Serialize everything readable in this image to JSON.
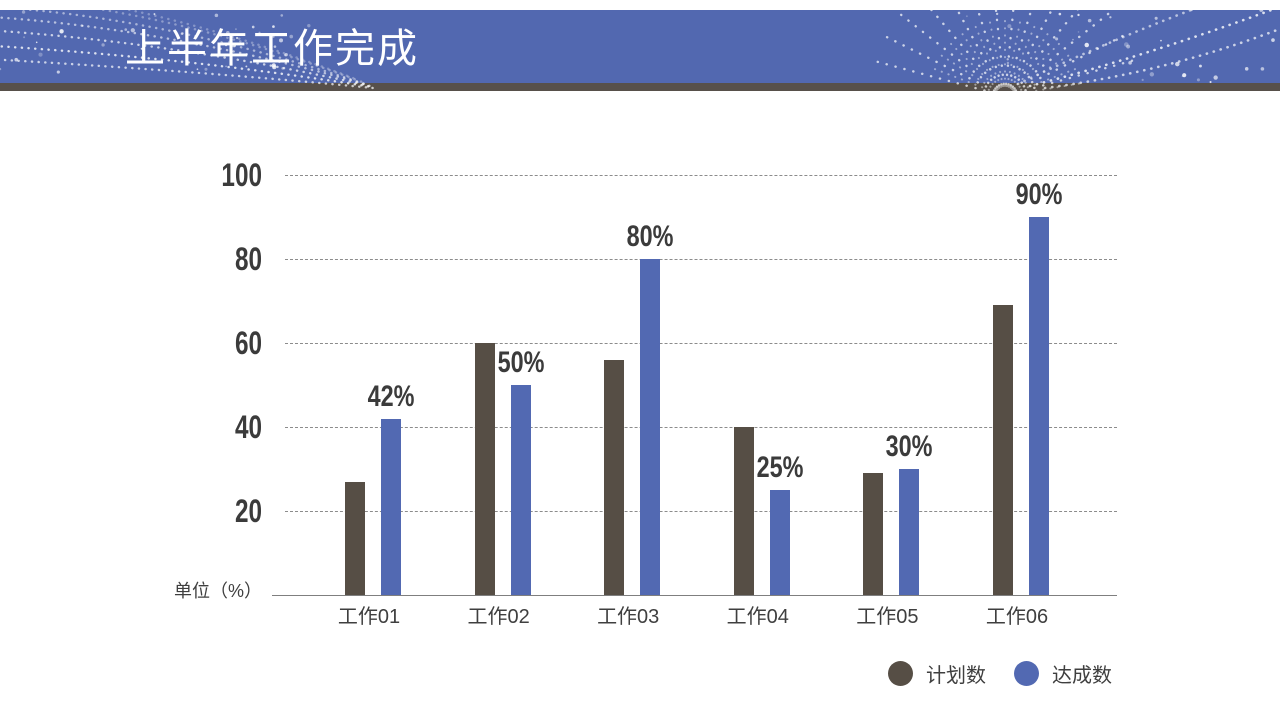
{
  "slide": {
    "title": "上半年工作完成"
  },
  "chart_data": {
    "type": "bar",
    "title": "上半年工作完成",
    "ylabel": "单位（%）",
    "ylim": [
      0,
      100
    ],
    "yticks": [
      100,
      80,
      60,
      40,
      20
    ],
    "grid": "horizontal-dashed",
    "legend_position": "bottom-right",
    "categories": [
      "工作01",
      "工作02",
      "工作03",
      "工作04",
      "工作05",
      "工作06"
    ],
    "series": [
      {
        "name": "计划数",
        "color": "#564E45",
        "values": [
          27,
          60,
          56,
          40,
          29,
          69
        ]
      },
      {
        "name": "达成数",
        "color": "#5269B2",
        "values": [
          42,
          50,
          80,
          25,
          30,
          90
        ]
      }
    ],
    "data_labels": {
      "series": "达成数",
      "values": [
        "42%",
        "50%",
        "80%",
        "25%",
        "30%",
        "90%"
      ]
    }
  },
  "colors": {
    "header": "#5268B0",
    "header_underline": "#57504A",
    "background": "#FFFFFF",
    "grid": "#8C8C8C",
    "axis": "#7F7F7F",
    "tick_text": "#3B3B3B",
    "category_text": "#3F3F3F",
    "title_text": "#FFFFFF"
  }
}
